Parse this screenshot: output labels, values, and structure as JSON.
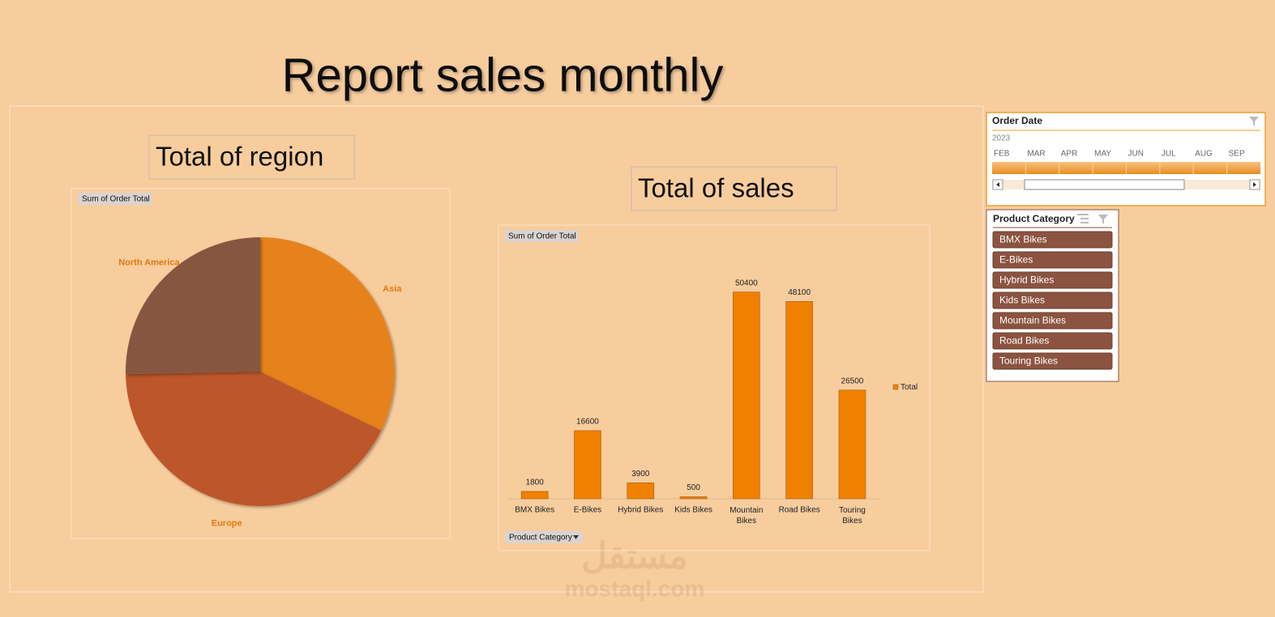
{
  "title": "Report sales monthly",
  "chart_data": [
    {
      "type": "pie",
      "title": "Total of region",
      "field_button": "Sum of Order Total",
      "categories": [
        "Asia",
        "Europe",
        "North America"
      ],
      "values": [
        47600,
        62800,
        37400
      ],
      "colors": [
        "#e6821a",
        "#bd572b",
        "#875741"
      ]
    },
    {
      "type": "bar",
      "title": "Total of sales",
      "field_button": "Sum of Order Total",
      "axis_field_button": "Product Category",
      "categories": [
        "BMX Bikes",
        "E-Bikes",
        "Hybrid Bikes",
        "Kids Bikes",
        "Mountain Bikes",
        "Road Bikes",
        "Touring Bikes"
      ],
      "series": [
        {
          "name": "Total",
          "color": "#f08000",
          "values": [
            1800,
            16600,
            3900,
            500,
            50400,
            48100,
            26500
          ]
        }
      ],
      "ylim": [
        0,
        60000
      ]
    }
  ],
  "timeline": {
    "title": "Order Date",
    "year": "2023",
    "months": [
      "FEB",
      "MAR",
      "APR",
      "MAY",
      "JUN",
      "JUL",
      "AUG",
      "SEP"
    ]
  },
  "slicer": {
    "title": "Product Category",
    "items": [
      "BMX Bikes",
      "E-Bikes",
      "Hybrid Bikes",
      "Kids Bikes",
      "Mountain Bikes",
      "Road Bikes",
      "Touring Bikes"
    ]
  },
  "watermark": {
    "arabic": "مستقل",
    "latin": "mostaql.com"
  }
}
